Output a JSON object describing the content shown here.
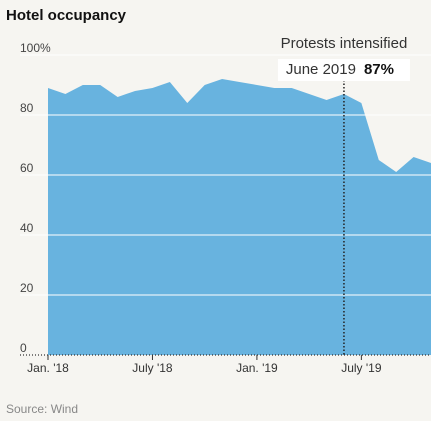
{
  "chart_data": {
    "type": "area",
    "title": "Hotel occupancy",
    "categories": [
      "Jan. '18",
      null,
      null,
      null,
      null,
      null,
      "July '18",
      null,
      null,
      null,
      null,
      null,
      "Jan. '19",
      null,
      null,
      null,
      null,
      null,
      "July '19",
      null,
      null,
      null,
      null
    ],
    "values": [
      89,
      87,
      90,
      90,
      86,
      88,
      89,
      91,
      84,
      90,
      92,
      91,
      90,
      89,
      89,
      87,
      85,
      87,
      84,
      65,
      61,
      66,
      64
    ],
    "value_labels": [
      null,
      null,
      null,
      null,
      null,
      null,
      null,
      null,
      null,
      null,
      null,
      null,
      null,
      null,
      null,
      null,
      null,
      "87%",
      null,
      null,
      null,
      null,
      null
    ],
    "annotation": {
      "text": "Protests intensified",
      "x": "June 2019"
    },
    "color": "#68b3df",
    "ylim": [
      0,
      100
    ],
    "yticks": [
      0,
      20,
      40,
      60,
      80,
      {
        "value": 100,
        "label": "100%"
      }
    ],
    "grid": true,
    "source": "Source: Wind"
  }
}
